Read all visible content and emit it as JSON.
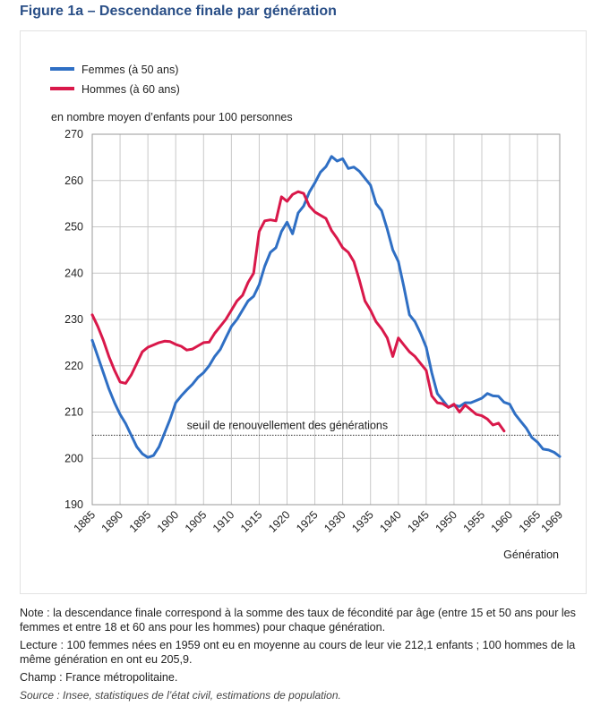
{
  "figure": {
    "title": "Figure 1a – Descendance finale par génération"
  },
  "colors": {
    "women": "#2f6fc4",
    "men": "#d9184a",
    "grid": "#c8c8c8",
    "axis": "#555555"
  },
  "chart_data": {
    "type": "line",
    "ylabel": "en nombre moyen d’enfants pour 100 personnes",
    "xlabel": "Génération",
    "xlim": [
      1885,
      1969
    ],
    "ylim": [
      190,
      270
    ],
    "x_ticks": [
      1885,
      1890,
      1895,
      1900,
      1905,
      1910,
      1915,
      1920,
      1925,
      1930,
      1935,
      1940,
      1945,
      1950,
      1955,
      1960,
      1965,
      1969
    ],
    "y_ticks": [
      190,
      200,
      210,
      220,
      230,
      240,
      250,
      260,
      270
    ],
    "grid": true,
    "legend_position": "top-left",
    "series": [
      {
        "name": "Femmes (à 50 ans)",
        "color": "#2f6fc4",
        "points": [
          [
            1885,
            225.5
          ],
          [
            1886,
            222
          ],
          [
            1887,
            218.5
          ],
          [
            1888,
            215
          ],
          [
            1889,
            212
          ],
          [
            1890,
            209.5
          ],
          [
            1891,
            207.5
          ],
          [
            1892,
            205
          ],
          [
            1893,
            202.5
          ],
          [
            1894,
            201
          ],
          [
            1895,
            200.2
          ],
          [
            1896,
            200.6
          ],
          [
            1897,
            202.5
          ],
          [
            1898,
            205.5
          ],
          [
            1899,
            208.5
          ],
          [
            1900,
            212
          ],
          [
            1901,
            213.5
          ],
          [
            1902,
            214.8
          ],
          [
            1903,
            216
          ],
          [
            1904,
            217.5
          ],
          [
            1905,
            218.5
          ],
          [
            1906,
            220
          ],
          [
            1907,
            222
          ],
          [
            1908,
            223.5
          ],
          [
            1909,
            226
          ],
          [
            1910,
            228.5
          ],
          [
            1911,
            230
          ],
          [
            1912,
            232
          ],
          [
            1913,
            234
          ],
          [
            1914,
            235
          ],
          [
            1915,
            237.5
          ],
          [
            1916,
            241.5
          ],
          [
            1917,
            244.5
          ],
          [
            1918,
            245.5
          ],
          [
            1919,
            249
          ],
          [
            1920,
            251
          ],
          [
            1921,
            248.5
          ],
          [
            1922,
            253
          ],
          [
            1923,
            254.5
          ],
          [
            1924,
            257.5
          ],
          [
            1925,
            259.5
          ],
          [
            1926,
            261.8
          ],
          [
            1927,
            263
          ],
          [
            1928,
            265.2
          ],
          [
            1929,
            264.2
          ],
          [
            1930,
            264.7
          ],
          [
            1931,
            262.6
          ],
          [
            1932,
            262.9
          ],
          [
            1933,
            262
          ],
          [
            1934,
            260.5
          ],
          [
            1935,
            259
          ],
          [
            1936,
            255
          ],
          [
            1937,
            253.5
          ],
          [
            1938,
            249.5
          ],
          [
            1939,
            245
          ],
          [
            1940,
            242.5
          ],
          [
            1941,
            237
          ],
          [
            1942,
            231
          ],
          [
            1943,
            229.5
          ],
          [
            1944,
            227
          ],
          [
            1945,
            224
          ],
          [
            1946,
            218.5
          ],
          [
            1947,
            214
          ],
          [
            1948,
            212.5
          ],
          [
            1949,
            211
          ],
          [
            1950,
            211.5
          ],
          [
            1951,
            211.2
          ],
          [
            1952,
            212
          ],
          [
            1953,
            212
          ],
          [
            1954,
            212.5
          ],
          [
            1955,
            213
          ],
          [
            1956,
            214
          ],
          [
            1957,
            213.5
          ],
          [
            1958,
            213.4
          ],
          [
            1959,
            212.1
          ],
          [
            1960,
            211.7
          ],
          [
            1961,
            209.5
          ],
          [
            1962,
            208
          ],
          [
            1963,
            206.5
          ],
          [
            1964,
            204.5
          ],
          [
            1965,
            203.5
          ],
          [
            1966,
            202
          ],
          [
            1967,
            201.8
          ],
          [
            1968,
            201.3
          ],
          [
            1969,
            200.4
          ]
        ]
      },
      {
        "name": "Hommes (à 60 ans)",
        "color": "#d9184a",
        "points": [
          [
            1885,
            231
          ],
          [
            1886,
            228.5
          ],
          [
            1887,
            225.5
          ],
          [
            1888,
            222
          ],
          [
            1889,
            219
          ],
          [
            1890,
            216.5
          ],
          [
            1891,
            216.2
          ],
          [
            1892,
            218
          ],
          [
            1893,
            220.5
          ],
          [
            1894,
            223
          ],
          [
            1895,
            224
          ],
          [
            1896,
            224.5
          ],
          [
            1897,
            225
          ],
          [
            1898,
            225.3
          ],
          [
            1899,
            225.2
          ],
          [
            1900,
            224.6
          ],
          [
            1901,
            224.2
          ],
          [
            1902,
            223.4
          ],
          [
            1903,
            223.6
          ],
          [
            1904,
            224.3
          ],
          [
            1905,
            225
          ],
          [
            1906,
            225.1
          ],
          [
            1907,
            227
          ],
          [
            1908,
            228.5
          ],
          [
            1909,
            230
          ],
          [
            1910,
            232
          ],
          [
            1911,
            234
          ],
          [
            1912,
            235.2
          ],
          [
            1913,
            238
          ],
          [
            1914,
            240
          ],
          [
            1915,
            249
          ],
          [
            1916,
            251.3
          ],
          [
            1917,
            251.5
          ],
          [
            1918,
            251.3
          ],
          [
            1919,
            256.5
          ],
          [
            1920,
            255.5
          ],
          [
            1921,
            257
          ],
          [
            1922,
            257.6
          ],
          [
            1923,
            257.2
          ],
          [
            1924,
            254.5
          ],
          [
            1925,
            253.2
          ],
          [
            1926,
            252.5
          ],
          [
            1927,
            251.8
          ],
          [
            1928,
            249.2
          ],
          [
            1929,
            247.5
          ],
          [
            1930,
            245.5
          ],
          [
            1931,
            244.5
          ],
          [
            1932,
            242.5
          ],
          [
            1933,
            238.5
          ],
          [
            1934,
            234
          ],
          [
            1935,
            232
          ],
          [
            1936,
            229.5
          ],
          [
            1937,
            228
          ],
          [
            1938,
            226
          ],
          [
            1939,
            222
          ],
          [
            1940,
            226
          ],
          [
            1941,
            224.5
          ],
          [
            1942,
            223
          ],
          [
            1943,
            222
          ],
          [
            1944,
            220.5
          ],
          [
            1945,
            219
          ],
          [
            1946,
            213.5
          ],
          [
            1947,
            212
          ],
          [
            1948,
            211.8
          ],
          [
            1949,
            211
          ],
          [
            1950,
            211.7
          ],
          [
            1951,
            210
          ],
          [
            1952,
            211.5
          ],
          [
            1953,
            210.5
          ],
          [
            1954,
            209.5
          ],
          [
            1955,
            209.2
          ],
          [
            1956,
            208.5
          ],
          [
            1957,
            207.2
          ],
          [
            1958,
            207.6
          ],
          [
            1959,
            205.9
          ]
        ]
      }
    ],
    "reference_line": {
      "y": 205,
      "label": "seuil de renouvellement des générations"
    }
  },
  "notes": {
    "note": "Note : la descendance finale correspond à la somme des taux de fécondité par âge (entre 15 et 50 ans pour les femmes et entre 18 et 60 ans pour les hommes) pour chaque génération.",
    "lecture": "Lecture : 100 femmes nées en 1959 ont eu en moyenne au cours de leur vie 212,1 enfants ; 100 hommes de la même génération en ont eu 205,9.",
    "champ": "Champ : France métropolitaine.",
    "source": "Source : Insee, statistiques de l’état civil, estimations de population."
  }
}
